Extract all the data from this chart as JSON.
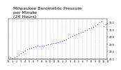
{
  "title": "Milwaukee Barometric Pressure\nper Minute\n(24 Hours)",
  "title_fontsize": 4.5,
  "bg_color": "#ffffff",
  "plot_bg_color": "#ffffff",
  "dot_color": "#0000ff",
  "dot_size": 0.3,
  "grid_color": "#aaaaaa",
  "grid_style": "--",
  "grid_linewidth": 0.3,
  "xlim": [
    0,
    1440
  ],
  "ylim": [
    29.2,
    30.3
  ],
  "xtick_positions": [
    0,
    60,
    120,
    180,
    240,
    300,
    360,
    420,
    480,
    540,
    600,
    660,
    720,
    780,
    840,
    900,
    960,
    1020,
    1080,
    1140,
    1200,
    1260,
    1320,
    1380,
    1440
  ],
  "xtick_labels": [
    "12",
    "1",
    "2",
    "3",
    "4",
    "5",
    "6",
    "7",
    "8",
    "9",
    "10",
    "11",
    "12",
    "1",
    "2",
    "3",
    "4",
    "5",
    "6",
    "7",
    "8",
    "9",
    "10",
    "11",
    "12"
  ],
  "ytick_positions": [
    29.2,
    29.4,
    29.6,
    29.8,
    30.0,
    30.2
  ],
  "ytick_labels": [
    "29.2",
    "29.4",
    "29.6",
    "29.8",
    "30.0",
    "30.2"
  ],
  "tick_fontsize": 2.5,
  "x_data": [
    0,
    30,
    60,
    90,
    120,
    150,
    180,
    210,
    240,
    270,
    300,
    330,
    360,
    390,
    420,
    450,
    480,
    510,
    540,
    570,
    600,
    630,
    660,
    690,
    720,
    750,
    780,
    810,
    840,
    870,
    900,
    930,
    960,
    990,
    1020,
    1050,
    1080,
    1110,
    1140,
    1170,
    1200,
    1230,
    1260,
    1290,
    1320,
    1350,
    1380,
    1410,
    1440
  ],
  "y_data": [
    29.25,
    29.23,
    29.22,
    29.24,
    29.28,
    29.32,
    29.35,
    29.38,
    29.42,
    29.46,
    29.48,
    29.5,
    29.52,
    29.54,
    29.56,
    29.55,
    29.57,
    29.57,
    29.58,
    29.59,
    29.6,
    29.62,
    29.63,
    29.63,
    29.65,
    29.68,
    29.7,
    29.72,
    29.74,
    29.77,
    29.8,
    29.82,
    29.85,
    29.88,
    29.9,
    29.93,
    29.95,
    29.98,
    30.0,
    30.03,
    30.05,
    30.08,
    30.12,
    30.16,
    30.2,
    30.22,
    30.1,
    30.15,
    30.18
  ]
}
